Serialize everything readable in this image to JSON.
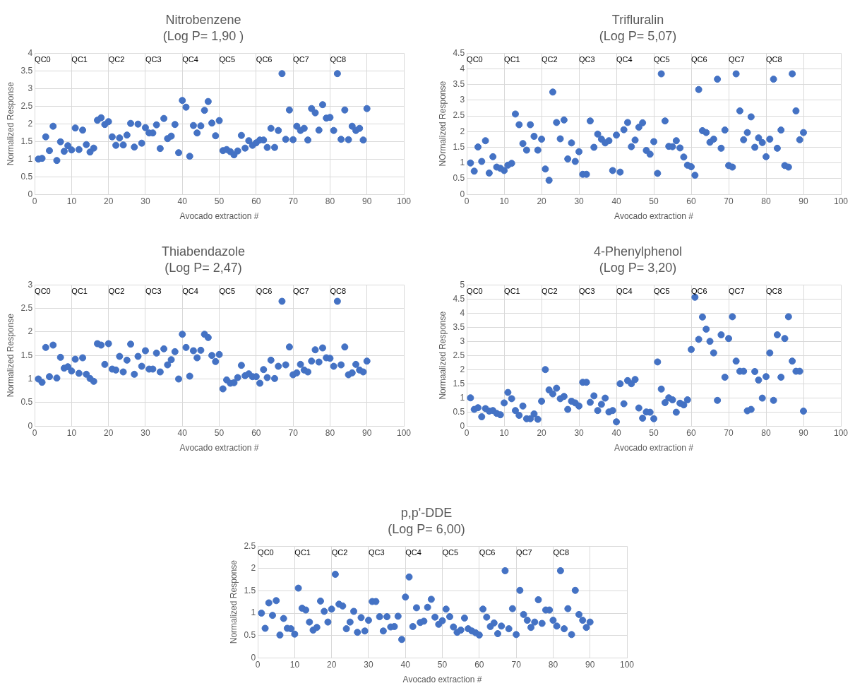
{
  "chart_data": [
    {
      "type": "scatter",
      "title": "Nitrobenzene",
      "subtitle": "(Log P= 1,90 )",
      "xlabel": "Avocado extraction #",
      "ylabel": "Normalized Response",
      "color": "#4472c4",
      "marker": "circle",
      "grid": true,
      "xlim": [
        0,
        100
      ],
      "xticks": [
        0,
        10,
        20,
        30,
        40,
        50,
        60,
        70,
        80,
        90,
        100
      ],
      "ylim": [
        0,
        4
      ],
      "yticks": [
        0,
        0.5,
        1,
        1.5,
        2,
        2.5,
        3,
        3.5,
        4
      ],
      "x": [
        1,
        2,
        3,
        4,
        5,
        6,
        7,
        8,
        9,
        10,
        11,
        12,
        13,
        14,
        15,
        16,
        17,
        18,
        19,
        20,
        21,
        22,
        23,
        24,
        25,
        26,
        27,
        28,
        29,
        30,
        31,
        32,
        33,
        34,
        35,
        36,
        37,
        38,
        39,
        40,
        41,
        42,
        43,
        44,
        45,
        46,
        47,
        48,
        49,
        50,
        51,
        52,
        53,
        54,
        55,
        56,
        57,
        58,
        59,
        60,
        61,
        62,
        63,
        64,
        65,
        66,
        67,
        68,
        69,
        70,
        71,
        72,
        73,
        74,
        75,
        76,
        77,
        78,
        79,
        80,
        81,
        82,
        83,
        84,
        85,
        86,
        87,
        88,
        89,
        90
      ],
      "values": [
        1.0,
        1.02,
        1.63,
        1.24,
        1.93,
        0.96,
        1.49,
        1.22,
        1.38,
        1.26,
        1.88,
        1.27,
        1.82,
        1.41,
        1.2,
        1.31,
        2.1,
        2.17,
        1.98,
        2.06,
        1.63,
        1.39,
        1.6,
        1.4,
        1.68,
        2.01,
        1.34,
        1.99,
        1.45,
        1.89,
        1.74,
        1.74,
        1.97,
        1.3,
        2.15,
        1.58,
        1.65,
        1.98,
        1.18,
        2.66,
        2.47,
        1.08,
        1.95,
        1.74,
        1.94,
        2.38,
        2.63,
        2.02,
        1.66,
        2.09,
        1.24,
        1.27,
        1.21,
        1.12,
        1.23,
        1.67,
        1.31,
        1.52,
        1.39,
        1.46,
        1.54,
        1.54,
        1.33,
        1.87,
        1.33,
        1.81,
        3.42,
        1.56,
        2.39,
        1.55,
        1.93,
        1.81,
        1.87,
        1.54,
        2.43,
        2.31,
        1.82,
        2.54,
        2.16,
        2.18,
        1.81,
        3.42,
        1.56,
        2.39,
        1.55,
        1.93,
        1.81,
        1.87,
        1.54,
        2.43
      ],
      "annotations": [
        "QC0",
        "QC1",
        "QC2",
        "QC3",
        "QC4",
        "QC5",
        "QC6",
        "QC7",
        "QC8"
      ]
    },
    {
      "type": "scatter",
      "title": "Trifluralin",
      "subtitle": "(Log P= 5,07)",
      "xlabel": "Avocado extraction #",
      "ylabel": "NOrmalized Response",
      "color": "#4472c4",
      "marker": "circle",
      "grid": true,
      "xlim": [
        0,
        100
      ],
      "xticks": [
        0,
        10,
        20,
        30,
        40,
        50,
        60,
        70,
        80,
        90,
        100
      ],
      "ylim": [
        0,
        4.5
      ],
      "yticks": [
        0,
        0.5,
        1,
        1.5,
        2,
        2.5,
        3,
        3.5,
        4,
        4.5
      ],
      "x": [
        1,
        2,
        3,
        4,
        5,
        6,
        7,
        8,
        9,
        10,
        11,
        12,
        13,
        14,
        15,
        16,
        17,
        18,
        19,
        20,
        21,
        22,
        23,
        24,
        25,
        26,
        27,
        28,
        29,
        30,
        31,
        32,
        33,
        34,
        35,
        36,
        37,
        38,
        39,
        40,
        41,
        42,
        43,
        44,
        45,
        46,
        47,
        48,
        49,
        50,
        51,
        52,
        53,
        54,
        55,
        56,
        57,
        58,
        59,
        60,
        61,
        62,
        63,
        64,
        65,
        66,
        67,
        68,
        69,
        70,
        71,
        72,
        73,
        74,
        75,
        76,
        77,
        78,
        79,
        80,
        81,
        82,
        83,
        84,
        85,
        86,
        87,
        88,
        89,
        90
      ],
      "values": [
        1.0,
        0.74,
        1.51,
        1.05,
        1.71,
        0.68,
        1.2,
        0.87,
        0.83,
        0.76,
        0.93,
        0.99,
        2.56,
        2.22,
        1.62,
        1.41,
        2.22,
        1.85,
        1.41,
        1.76,
        0.81,
        0.45,
        3.26,
        2.29,
        1.77,
        2.37,
        1.13,
        1.64,
        1.05,
        1.36,
        0.64,
        0.64,
        2.34,
        1.5,
        1.92,
        1.76,
        1.64,
        1.71,
        0.76,
        1.89,
        0.71,
        2.06,
        2.29,
        1.52,
        1.73,
        2.14,
        2.28,
        1.4,
        1.28,
        1.68,
        0.67,
        3.84,
        2.34,
        1.53,
        1.52,
        1.71,
        1.48,
        1.19,
        0.93,
        0.88,
        0.61,
        3.34,
        2.03,
        1.97,
        1.66,
        1.76,
        3.67,
        1.47,
        2.05,
        0.92,
        0.87,
        3.84,
        2.66,
        1.74,
        1.97,
        2.47,
        1.5,
        1.8,
        1.65,
        1.2,
        1.76,
        3.67,
        1.47,
        2.05,
        0.92,
        0.87,
        3.84,
        2.66,
        1.74,
        1.97
      ],
      "annotations": [
        "QC0",
        "QC1",
        "QC2",
        "QC3",
        "QC4",
        "QC5",
        "QC6",
        "QC7",
        "QC8"
      ]
    },
    {
      "type": "scatter",
      "title": "Thiabendazole",
      "subtitle": "(Log P= 2,47)",
      "xlabel": "Avocado extraction #",
      "ylabel": "Normalized Response",
      "color": "#4472c4",
      "marker": "circle",
      "grid": true,
      "xlim": [
        0,
        100
      ],
      "xticks": [
        0,
        10,
        20,
        30,
        40,
        50,
        60,
        70,
        80,
        90,
        100
      ],
      "ylim": [
        0,
        3
      ],
      "yticks": [
        0,
        0.5,
        1,
        1.5,
        2,
        2.5,
        3
      ],
      "x": [
        1,
        2,
        3,
        4,
        5,
        6,
        7,
        8,
        9,
        10,
        11,
        12,
        13,
        14,
        15,
        16,
        17,
        18,
        19,
        20,
        21,
        22,
        23,
        24,
        25,
        26,
        27,
        28,
        29,
        30,
        31,
        32,
        33,
        34,
        35,
        36,
        37,
        38,
        39,
        40,
        41,
        42,
        43,
        44,
        45,
        46,
        47,
        48,
        49,
        50,
        51,
        52,
        53,
        54,
        55,
        56,
        57,
        58,
        59,
        60,
        61,
        62,
        63,
        64,
        65,
        66,
        67,
        68,
        69,
        70,
        71,
        72,
        73,
        74,
        75,
        76,
        77,
        78,
        79,
        80,
        81,
        82,
        83,
        84,
        85,
        86,
        87,
        88,
        89,
        90
      ],
      "values": [
        1.0,
        0.93,
        1.67,
        1.05,
        1.72,
        1.02,
        1.46,
        1.23,
        1.26,
        1.17,
        1.42,
        1.12,
        1.45,
        1.1,
        1.01,
        0.95,
        1.75,
        1.72,
        1.31,
        1.75,
        1.21,
        1.19,
        1.48,
        1.15,
        1.4,
        1.74,
        1.1,
        1.48,
        1.27,
        1.6,
        1.21,
        1.21,
        1.55,
        1.15,
        1.64,
        1.3,
        1.41,
        1.58,
        1.0,
        1.95,
        1.67,
        1.06,
        1.6,
        1.45,
        1.61,
        1.95,
        1.88,
        1.5,
        1.37,
        1.52,
        0.79,
        0.98,
        0.91,
        0.92,
        1.03,
        1.29,
        1.07,
        1.11,
        1.05,
        1.05,
        0.91,
        1.2,
        1.03,
        1.4,
        1.01,
        1.27,
        2.65,
        1.3,
        1.68,
        1.09,
        1.13,
        1.31,
        1.19,
        1.15,
        1.38,
        1.62,
        1.36,
        1.66,
        1.45,
        1.44,
        1.27,
        2.65,
        1.3,
        1.68,
        1.09,
        1.13,
        1.31,
        1.19,
        1.15,
        1.38
      ],
      "annotations": [
        "QC0",
        "QC1",
        "QC2",
        "QC3",
        "QC4",
        "QC5",
        "QC6",
        "QC7",
        "QC8"
      ]
    },
    {
      "type": "scatter",
      "title": "4-Phenylphenol",
      "subtitle": "(Log P= 3,20)",
      "xlabel": "Avocado extraction #",
      "ylabel": "Normaalized Response",
      "color": "#4472c4",
      "marker": "circle",
      "grid": true,
      "xlim": [
        0,
        100
      ],
      "xticks": [
        0,
        10,
        20,
        30,
        40,
        50,
        60,
        70,
        80,
        90,
        100
      ],
      "ylim": [
        0,
        5
      ],
      "yticks": [
        0,
        0.5,
        1,
        1.5,
        2,
        2.5,
        3,
        3.5,
        4,
        4.5,
        5
      ],
      "x": [
        1,
        2,
        3,
        4,
        5,
        6,
        7,
        8,
        9,
        10,
        11,
        12,
        13,
        14,
        15,
        16,
        17,
        18,
        19,
        20,
        21,
        22,
        23,
        24,
        25,
        26,
        27,
        28,
        29,
        30,
        31,
        32,
        33,
        34,
        35,
        36,
        37,
        38,
        39,
        40,
        41,
        42,
        43,
        44,
        45,
        46,
        47,
        48,
        49,
        50,
        51,
        52,
        53,
        54,
        55,
        56,
        57,
        58,
        59,
        60,
        61,
        62,
        63,
        64,
        65,
        66,
        67,
        68,
        69,
        70,
        71,
        72,
        73,
        74,
        75,
        76,
        77,
        78,
        79,
        80,
        81,
        82,
        83,
        84,
        85,
        86,
        87,
        88,
        89,
        90
      ],
      "values": [
        1.0,
        0.59,
        0.65,
        0.33,
        0.62,
        0.53,
        0.55,
        0.45,
        0.4,
        0.82,
        1.19,
        0.97,
        0.55,
        0.38,
        0.71,
        0.26,
        0.26,
        0.43,
        0.24,
        0.88,
        2.0,
        1.28,
        1.14,
        1.34,
        0.97,
        1.05,
        0.59,
        0.88,
        0.82,
        0.71,
        1.55,
        1.55,
        0.84,
        1.07,
        0.55,
        0.77,
        0.99,
        0.5,
        0.55,
        0.15,
        1.5,
        0.79,
        1.61,
        1.5,
        1.65,
        0.64,
        0.28,
        0.5,
        0.49,
        0.26,
        2.27,
        1.31,
        0.83,
        1.0,
        0.93,
        0.49,
        0.81,
        0.75,
        0.93,
        2.71,
        4.56,
        3.07,
        3.86,
        3.43,
        3.0,
        2.59,
        0.91,
        3.23,
        1.73,
        3.1,
        3.87,
        2.3,
        1.94,
        1.94,
        0.54,
        0.59,
        1.93,
        1.63,
        0.99,
        1.75,
        2.59,
        0.91,
        3.23,
        1.73,
        3.1,
        3.87,
        2.3,
        1.94,
        1.94,
        0.53
      ],
      "annotations": [
        "QC0",
        "QC1",
        "QC2",
        "QC3",
        "QC4",
        "QC5",
        "QC6",
        "QC7",
        "QC8"
      ]
    },
    {
      "type": "scatter",
      "title": "p,p'-DDE",
      "subtitle": "(Log P= 6,00)",
      "xlabel": "Avocado extraction #",
      "ylabel": "Normalized Response",
      "color": "#4472c4",
      "marker": "circle",
      "grid": true,
      "xlim": [
        0,
        100
      ],
      "xticks": [
        0,
        10,
        20,
        30,
        40,
        50,
        60,
        70,
        80,
        90,
        100
      ],
      "ylim": [
        0,
        2.5
      ],
      "yticks": [
        0,
        0.5,
        1,
        1.5,
        2,
        2.5
      ],
      "x": [
        1,
        2,
        3,
        4,
        5,
        6,
        7,
        8,
        9,
        10,
        11,
        12,
        13,
        14,
        15,
        16,
        17,
        18,
        19,
        20,
        21,
        22,
        23,
        24,
        25,
        26,
        27,
        28,
        29,
        30,
        31,
        32,
        33,
        34,
        35,
        36,
        37,
        38,
        39,
        40,
        41,
        42,
        43,
        44,
        45,
        46,
        47,
        48,
        49,
        50,
        51,
        52,
        53,
        54,
        55,
        56,
        57,
        58,
        59,
        60,
        61,
        62,
        63,
        64,
        65,
        66,
        67,
        68,
        69,
        70,
        71,
        72,
        73,
        74,
        75,
        76,
        77,
        78,
        79,
        80,
        81,
        82,
        83,
        84,
        85,
        86,
        87,
        88,
        89,
        90
      ],
      "values": [
        1.0,
        0.66,
        1.23,
        0.95,
        1.28,
        0.51,
        0.88,
        0.66,
        0.65,
        0.53,
        1.56,
        1.11,
        1.07,
        0.8,
        0.62,
        0.68,
        1.27,
        1.04,
        0.8,
        1.09,
        1.87,
        1.2,
        1.16,
        0.65,
        0.8,
        1.04,
        0.57,
        0.9,
        0.6,
        0.84,
        1.26,
        1.26,
        0.92,
        0.6,
        0.92,
        0.69,
        0.7,
        0.93,
        0.41,
        1.36,
        1.81,
        0.7,
        1.12,
        0.79,
        0.82,
        1.13,
        1.31,
        0.91,
        0.75,
        0.83,
        1.09,
        0.92,
        0.69,
        0.57,
        0.62,
        0.89,
        0.65,
        0.6,
        0.56,
        0.51,
        1.09,
        0.91,
        0.7,
        0.78,
        0.54,
        0.71,
        1.95,
        0.65,
        1.1,
        0.52,
        1.51,
        0.97,
        0.84,
        0.68,
        0.8,
        1.3,
        0.77,
        1.07,
        1.07,
        0.84,
        0.71,
        1.95,
        0.65,
        1.1,
        0.52,
        1.51,
        0.97,
        0.84,
        0.68,
        0.8
      ],
      "annotations": [
        "QC0",
        "QC1",
        "QC2",
        "QC3",
        "QC4",
        "QC5",
        "QC6",
        "QC7",
        "QC8"
      ]
    }
  ]
}
